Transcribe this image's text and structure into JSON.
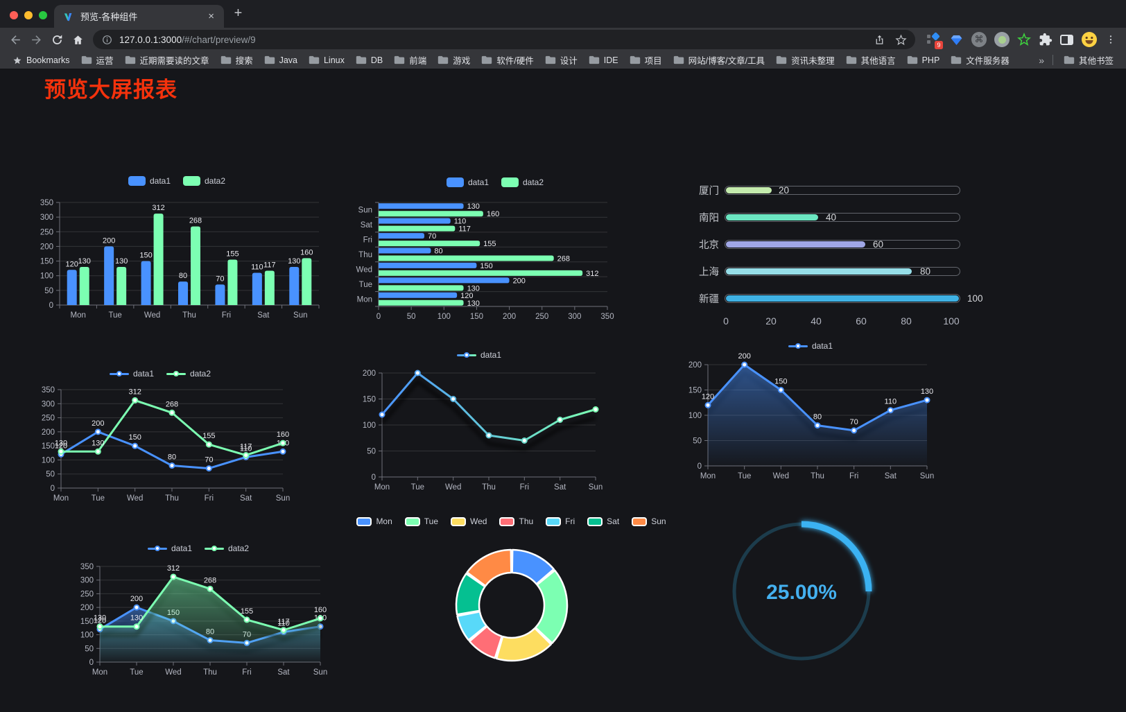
{
  "browser": {
    "tab": {
      "title": "预览-各种组件",
      "close_glyph": "×",
      "new_tab_glyph": "+"
    },
    "toolbar": {
      "url_host": "127.0.0.1:3000",
      "url_path": "/#/chart/preview/9",
      "extension_badge": "9"
    },
    "bookmarks": {
      "bar_label": "Bookmarks",
      "folders": [
        "运营",
        "近期需要读的文章",
        "搜索",
        "Java",
        "Linux",
        "DB",
        "前端",
        "游戏",
        "软件/硬件",
        "设计",
        "IDE",
        "项目",
        "网站/博客/文章/工具",
        "资讯未整理",
        "其他语言",
        "PHP",
        "文件服务器"
      ],
      "overflow_glyph": "»",
      "other_label": "其他书签"
    }
  },
  "page": {
    "title": "预览大屏报表",
    "title_color": "#f5320c",
    "background": "#15161a"
  },
  "palette": {
    "data1": "#4992ff",
    "data2": "#7cffb2",
    "axis_text": "#b3b6c1",
    "value_label": "#e9e9ee"
  },
  "chart_data": [
    {
      "id": "bar-vertical",
      "type": "bar",
      "legend_position": "top",
      "categories": [
        "Mon",
        "Tue",
        "Wed",
        "Thu",
        "Fri",
        "Sat",
        "Sun"
      ],
      "series": [
        {
          "name": "data1",
          "color": "#4992ff",
          "values": [
            120,
            200,
            150,
            80,
            70,
            110,
            130
          ]
        },
        {
          "name": "data2",
          "color": "#7cffb2",
          "values": [
            130,
            130,
            312,
            268,
            155,
            117,
            160
          ]
        }
      ],
      "ylim": [
        0,
        350
      ],
      "ytick_step": 50,
      "grid": true,
      "value_labels": true
    },
    {
      "id": "bar-horizontal",
      "type": "bar-horizontal",
      "legend_position": "top",
      "categories": [
        "Mon",
        "Tue",
        "Wed",
        "Thu",
        "Fri",
        "Sat",
        "Sun"
      ],
      "display_order_top_to_bottom": [
        "Sun",
        "Sat",
        "Fri",
        "Thu",
        "Wed",
        "Tue",
        "Mon"
      ],
      "series": [
        {
          "name": "data1",
          "color": "#4992ff",
          "values": [
            120,
            200,
            150,
            80,
            70,
            110,
            130
          ]
        },
        {
          "name": "data2",
          "color": "#7cffb2",
          "values": [
            130,
            130,
            312,
            268,
            155,
            117,
            160
          ]
        }
      ],
      "xlim": [
        0,
        350
      ],
      "xtick_step": 50,
      "value_labels": true
    },
    {
      "id": "city-progress",
      "type": "progress-bars",
      "rows": [
        {
          "label": "厦门",
          "value": 20,
          "color": "#c4ebad"
        },
        {
          "label": "南阳",
          "value": 40,
          "color": "#6be6c1"
        },
        {
          "label": "北京",
          "value": 60,
          "color": "#a0a7e6"
        },
        {
          "label": "上海",
          "value": 80,
          "color": "#96dee8"
        },
        {
          "label": "新疆",
          "value": 100,
          "color": "#3fb1e3"
        }
      ],
      "xlim": [
        0,
        100
      ],
      "xticks": [
        0,
        20,
        40,
        60,
        80,
        100
      ]
    },
    {
      "id": "line-two-series",
      "type": "line",
      "legend_position": "top",
      "categories": [
        "Mon",
        "Tue",
        "Wed",
        "Thu",
        "Fri",
        "Sat",
        "Sun"
      ],
      "series": [
        {
          "name": "data1",
          "color": "#4992ff",
          "values": [
            120,
            200,
            150,
            80,
            70,
            110,
            130
          ]
        },
        {
          "name": "data2",
          "color": "#7cffb2",
          "values": [
            130,
            130,
            312,
            268,
            155,
            117,
            160
          ]
        }
      ],
      "ylim": [
        0,
        350
      ],
      "ytick_step": 50,
      "value_labels": true,
      "markers": true
    },
    {
      "id": "line-gradient",
      "type": "line",
      "legend_position": "top",
      "categories": [
        "Mon",
        "Tue",
        "Wed",
        "Thu",
        "Fri",
        "Sat",
        "Sun"
      ],
      "series": [
        {
          "name": "data1",
          "gradient": [
            "#4992ff",
            "#7cffb2"
          ],
          "values": [
            120,
            200,
            150,
            80,
            70,
            110,
            130
          ]
        }
      ],
      "ylim": [
        0,
        200
      ],
      "ytick_step": 50,
      "value_labels": false,
      "markers": true,
      "line_shadow": true
    },
    {
      "id": "line-area",
      "type": "area",
      "legend_position": "top",
      "categories": [
        "Mon",
        "Tue",
        "Wed",
        "Thu",
        "Fri",
        "Sat",
        "Sun"
      ],
      "series": [
        {
          "name": "data1",
          "color": "#4992ff",
          "area": true,
          "values": [
            120,
            200,
            150,
            80,
            70,
            110,
            130
          ]
        }
      ],
      "ylim": [
        0,
        200
      ],
      "ytick_step": 50,
      "value_labels": true,
      "markers": true,
      "line_shadow": true
    },
    {
      "id": "line-two-area",
      "type": "area",
      "legend_position": "top",
      "categories": [
        "Mon",
        "Tue",
        "Wed",
        "Thu",
        "Fri",
        "Sat",
        "Sun"
      ],
      "series": [
        {
          "name": "data1",
          "color": "#4992ff",
          "area": true,
          "values": [
            120,
            200,
            150,
            80,
            70,
            110,
            130
          ]
        },
        {
          "name": "data2",
          "color": "#7cffb2",
          "area": true,
          "values": [
            130,
            130,
            312,
            268,
            155,
            117,
            160
          ]
        }
      ],
      "ylim": [
        0,
        350
      ],
      "ytick_step": 50,
      "value_labels": true,
      "markers": true,
      "line_shadow": true
    },
    {
      "id": "week-donut",
      "type": "pie",
      "donut": true,
      "border_color": "#ffffff",
      "legend_position": "top",
      "items": [
        {
          "label": "Mon",
          "value": 120,
          "color": "#4992ff"
        },
        {
          "label": "Tue",
          "value": 200,
          "color": "#7cffb2"
        },
        {
          "label": "Wed",
          "value": 150,
          "color": "#fddd60"
        },
        {
          "label": "Thu",
          "value": 80,
          "color": "#ff6e76"
        },
        {
          "label": "Fri",
          "value": 70,
          "color": "#58d9f9"
        },
        {
          "label": "Sat",
          "value": 110,
          "color": "#05c091"
        },
        {
          "label": "Sun",
          "value": 130,
          "color": "#ff8a45"
        }
      ]
    },
    {
      "id": "percent-gauge",
      "type": "gauge",
      "value": 25,
      "display": "25.00%",
      "color": "#3ab2f2",
      "track_color": "#1c3c4c"
    }
  ]
}
